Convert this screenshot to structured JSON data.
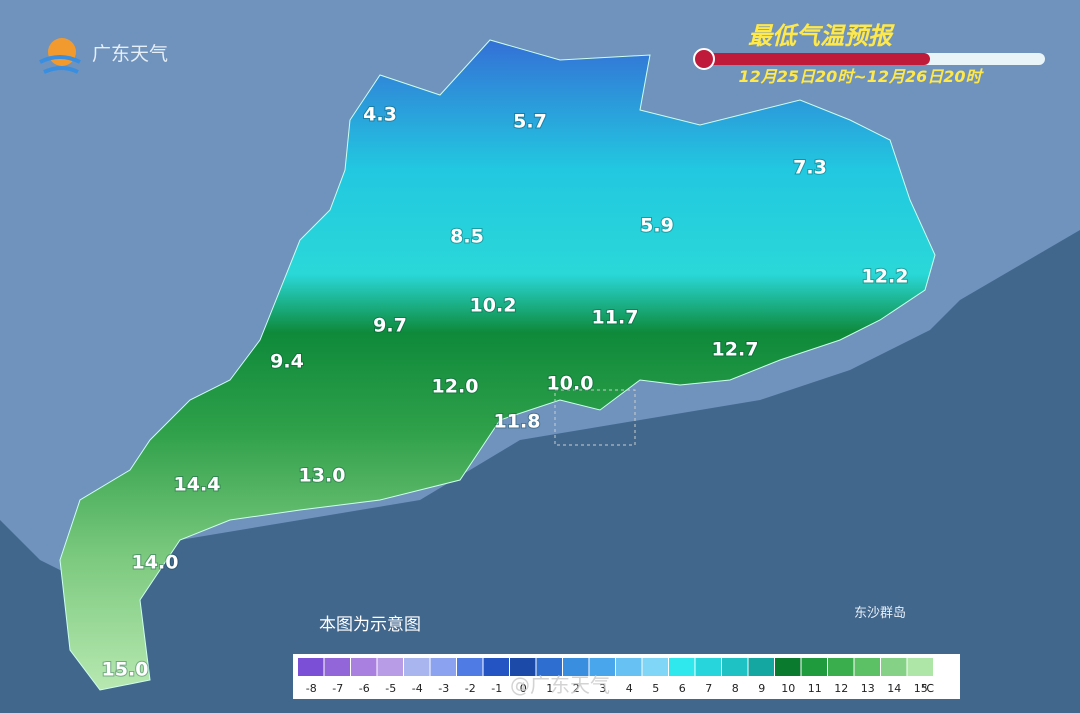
{
  "header": {
    "logo": "广东天气",
    "title": "最低气温预报",
    "period": "12月25日20时~12月26日20时"
  },
  "map": {
    "labels": [
      "4.3",
      "5.7",
      "7.3",
      "8.5",
      "5.9",
      "12.2",
      "10.2",
      "11.7",
      "9.7",
      "12.7",
      "9.4",
      "12.0",
      "10.0",
      "11.8",
      "14.4",
      "13.0",
      "14.0",
      "15.0"
    ],
    "island": "东沙群岛",
    "note": "本图为示意图"
  },
  "legend": {
    "unit": "℃",
    "values": [
      -8,
      -7,
      -6,
      -5,
      -4,
      -3,
      -2,
      -1,
      0,
      1,
      2,
      3,
      4,
      5,
      6,
      7,
      8,
      9,
      10,
      11,
      12,
      13,
      14,
      15
    ],
    "colors": [
      "#7b4fd6",
      "#9266d8",
      "#a97fe0",
      "#b99ce6",
      "#a9b5ee",
      "#8aa2f0",
      "#4f7be4",
      "#2454c4",
      "#1c4aa8",
      "#2d6ed0",
      "#3a8ee0",
      "#4aa6ec",
      "#67c1f2",
      "#7fd6f6",
      "#2ee8ee",
      "#27d6dc",
      "#1ec2c4",
      "#14a6a0",
      "#0a7a2e",
      "#1f9a3c",
      "#3aae4c",
      "#5cc064",
      "#85d286",
      "#aee6a8"
    ]
  },
  "watermark": "@广东天气"
}
